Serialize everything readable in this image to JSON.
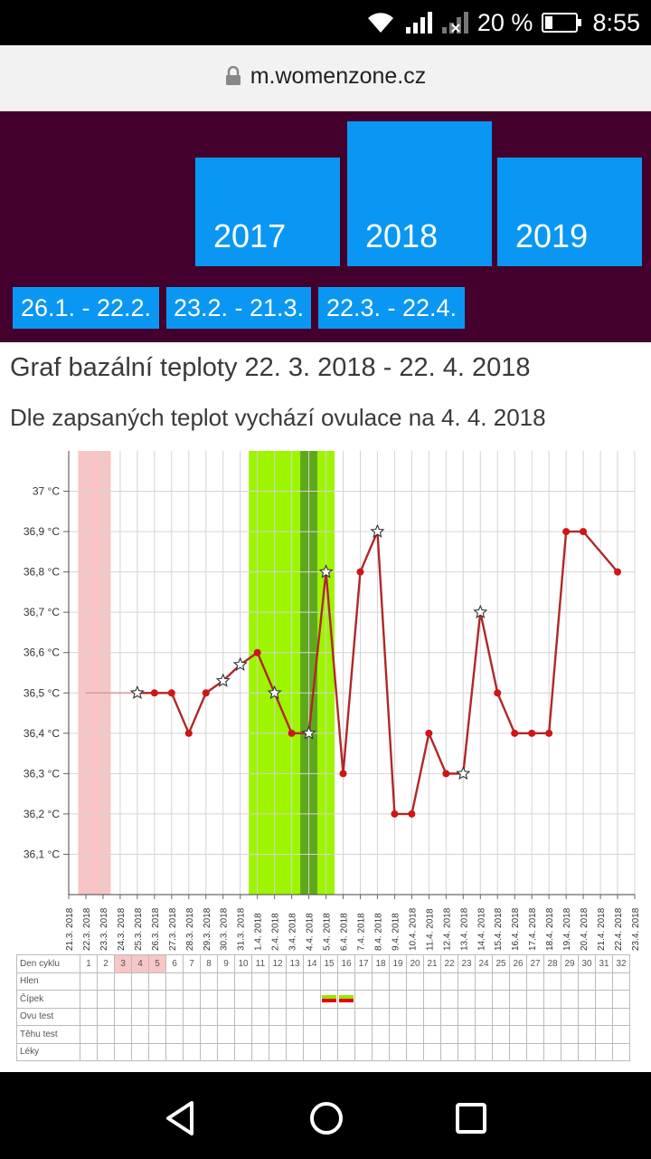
{
  "status": {
    "battery": "20 %",
    "time": "8:55",
    "icons": [
      "wifi-icon",
      "signal-icon",
      "signal-x-icon",
      "battery-icon"
    ]
  },
  "browser": {
    "url": "m.womenzone.cz",
    "lock_icon": "lock-icon"
  },
  "years": [
    "2017",
    "2018",
    "2019"
  ],
  "ranges": [
    "26.1. - 22.2.",
    "23.2. - 21.3.",
    "22.3. - 22.4."
  ],
  "page": {
    "title": "Graf bazální teploty 22. 3. 2018 - 22. 4. 2018",
    "subtitle": "Dle zapsaných teplot vychází ovulace na 4. 4. 2018"
  },
  "chart_data": {
    "type": "line",
    "title": "",
    "xlabel": "",
    "ylabel": "",
    "ylim": [
      36.0,
      37.1
    ],
    "y_ticks": [
      "36,1 °C",
      "36,2 °C",
      "36,3 °C",
      "36,4 °C",
      "36,5 °C",
      "36,6 °C",
      "36,7 °C",
      "36,8 °C",
      "36,9 °C",
      "37 °C"
    ],
    "x": [
      "21.3.2018",
      "22.3.2018",
      "23.3.2018",
      "24.3.2018",
      "25.3.2018",
      "26.3.2018",
      "27.3.2018",
      "28.3.2018",
      "29.3.2018",
      "30.3.2018",
      "31.3.2018",
      "1.4.2018",
      "2.4.2018",
      "3.4.2018",
      "4.4.2018",
      "5.4.2018",
      "6.4.2018",
      "7.4.2018",
      "8.4.2018",
      "9.4.2018",
      "10.4.2018",
      "11.4.2018",
      "12.4.2018",
      "13.4.2018",
      "14.4.2018",
      "15.4.2018",
      "16.4.2018",
      "17.4.2018",
      "18.4.2018",
      "19.4.2018",
      "20.4.2018",
      "21.4.2018",
      "22.4.2018",
      "23.4.2018"
    ],
    "series": [
      {
        "values": [
          null,
          36.5,
          36.5,
          36.5,
          36.5,
          36.5,
          36.5,
          36.4,
          36.5,
          36.53,
          36.57,
          36.6,
          36.5,
          36.4,
          36.4,
          36.8,
          36.3,
          36.8,
          36.9,
          36.2,
          36.2,
          36.4,
          36.3,
          36.3,
          36.7,
          36.5,
          36.4,
          36.4,
          36.4,
          36.9,
          36.9,
          null,
          36.8,
          null
        ],
        "markers": [
          "none",
          "none",
          "none",
          "none",
          "star",
          "dot",
          "dot",
          "dot",
          "dot",
          "star",
          "star",
          "dot",
          "star",
          "dot",
          "star",
          "star",
          "dot",
          "dot",
          "star",
          "dot",
          "dot",
          "dot",
          "dot",
          "star",
          "star",
          "dot",
          "dot",
          "dot",
          "dot",
          "dot",
          "dot",
          "none",
          "dot",
          "none"
        ],
        "color": "#b02828"
      }
    ],
    "highlights": [
      {
        "from": "22.3.2018",
        "to": "23.3.2018",
        "color": "#f9c4c4",
        "meaning": "menstruation"
      },
      {
        "from": "1.4.2018",
        "to": "5.4.2018",
        "color": "#9ef500",
        "meaning": "fertile window"
      },
      {
        "from": "4.4.2018",
        "to": "4.4.2018",
        "color": "#5fa81e",
        "meaning": "ovulation"
      }
    ],
    "grid": true,
    "legend": "none"
  },
  "cycle_table": {
    "row_labels": [
      "Den cyklu",
      "Hlen",
      "Čípek",
      "Ovu test",
      "Těhu test",
      "Léky"
    ],
    "days": [
      "1",
      "2",
      "3",
      "4",
      "5",
      "6",
      "7",
      "8",
      "9",
      "10",
      "11",
      "12",
      "13",
      "14",
      "15",
      "16",
      "17",
      "18",
      "19",
      "20",
      "21",
      "22",
      "23",
      "24",
      "25",
      "26",
      "27",
      "28",
      "29",
      "30",
      "31",
      "32"
    ],
    "menstruation_days": [
      3,
      4,
      5
    ],
    "cipek_days": [
      15,
      16
    ]
  },
  "nav": {
    "icons": [
      "back-icon",
      "home-icon",
      "recents-icon"
    ]
  }
}
